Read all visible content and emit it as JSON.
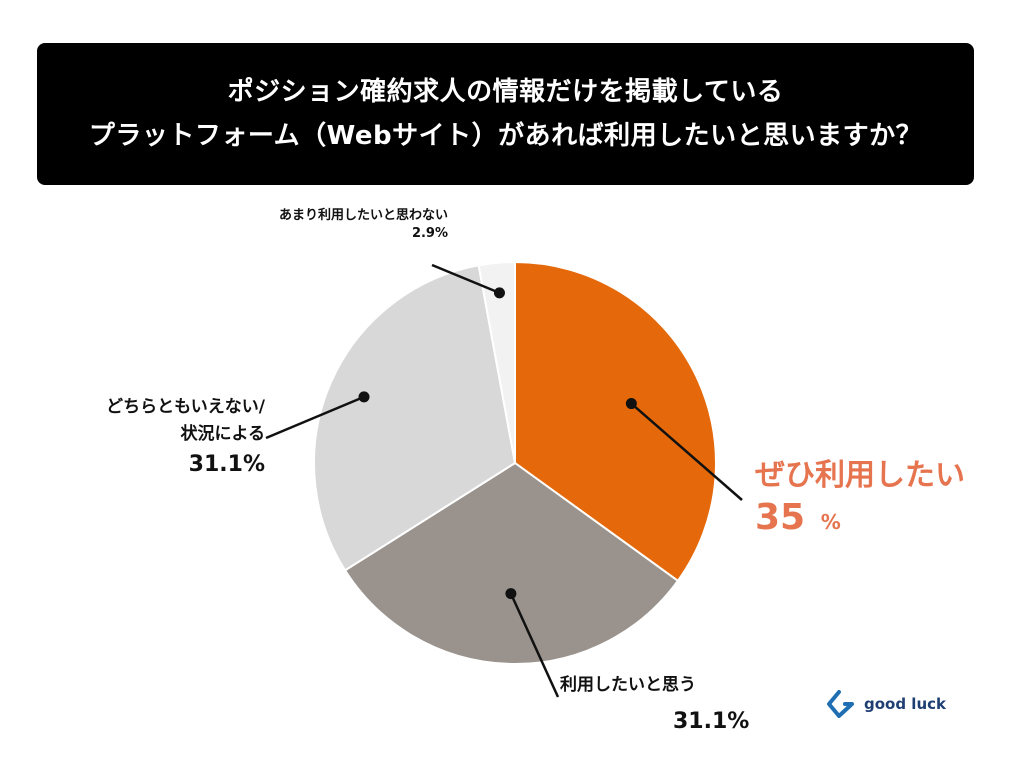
{
  "title": {
    "line1": "ポジション確約求人の情報だけを掲載している",
    "line2": "プラットフォーム（Webサイト）があれば利用したいと思いますか？"
  },
  "chart_data": {
    "type": "pie",
    "slices": [
      {
        "label": "ぜひ利用したい",
        "value": 35,
        "display": "35",
        "unit": "%",
        "color": "#e5690a"
      },
      {
        "label": "利用したいと思う",
        "value": 31.1,
        "display": "31.1%",
        "color": "#9a938d"
      },
      {
        "label_line1": "どちらともいえない/",
        "label_line2": "状況による",
        "value": 31.1,
        "display": "31.1%",
        "color": "#d8d8d8"
      },
      {
        "label": "あまり利用したいと思わない",
        "value": 2.9,
        "display": "2.9%",
        "color": "#f2f2f2"
      }
    ]
  },
  "logo": {
    "text": "good luck",
    "icon": "good-luck-logo-icon",
    "color": "#1f3f73"
  }
}
